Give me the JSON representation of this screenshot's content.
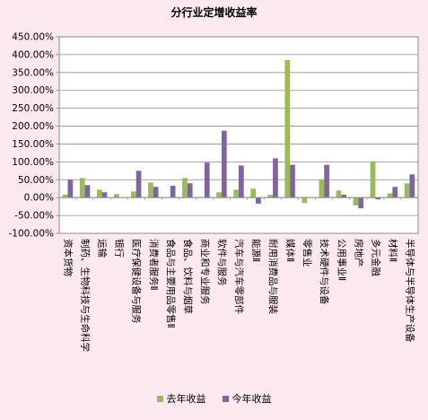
{
  "chart_data": {
    "type": "bar",
    "title": "分行业定增收益率",
    "xlabel": "",
    "ylabel": "",
    "ylim": [
      -100,
      450
    ],
    "yticks": [
      "450.00%",
      "400.00%",
      "350.00%",
      "300.00%",
      "250.00%",
      "200.00%",
      "150.00%",
      "100.00%",
      "50.00%",
      "0.00%",
      "-50.00%",
      "-100.00%"
    ],
    "grid": true,
    "legend": "bottom",
    "categories": [
      "资本货物",
      "制药、生物科技与生命科学",
      "运输",
      "银行",
      "医疗保健设备与服务",
      "消费者服务Ⅱ",
      "食品与主要用品零售Ⅱ",
      "食品、饮料与烟草",
      "商业和专业服务",
      "软件与服务",
      "汽车与汽车零部件",
      "能源Ⅱ",
      "耐用消费品与服装",
      "媒体Ⅱ",
      "零售业",
      "技术硬件与设备",
      "公用事业Ⅱ",
      "房地产",
      "多元金融",
      "材料Ⅱ",
      "半导体与半导体生产设备"
    ],
    "series": [
      {
        "name": "去年收益",
        "color": "#9bbb59",
        "values": [
          8,
          55,
          22,
          10,
          17,
          42,
          0,
          55,
          0,
          15,
          22,
          25,
          8,
          385,
          -15,
          50,
          20,
          -22,
          100,
          12,
          40
        ]
      },
      {
        "name": "今年收益",
        "color": "#8064a2",
        "values": [
          50,
          35,
          15,
          0,
          75,
          30,
          33,
          40,
          98,
          187,
          90,
          -17,
          110,
          92,
          0,
          92,
          8,
          -30,
          -5,
          30,
          65
        ]
      }
    ]
  }
}
